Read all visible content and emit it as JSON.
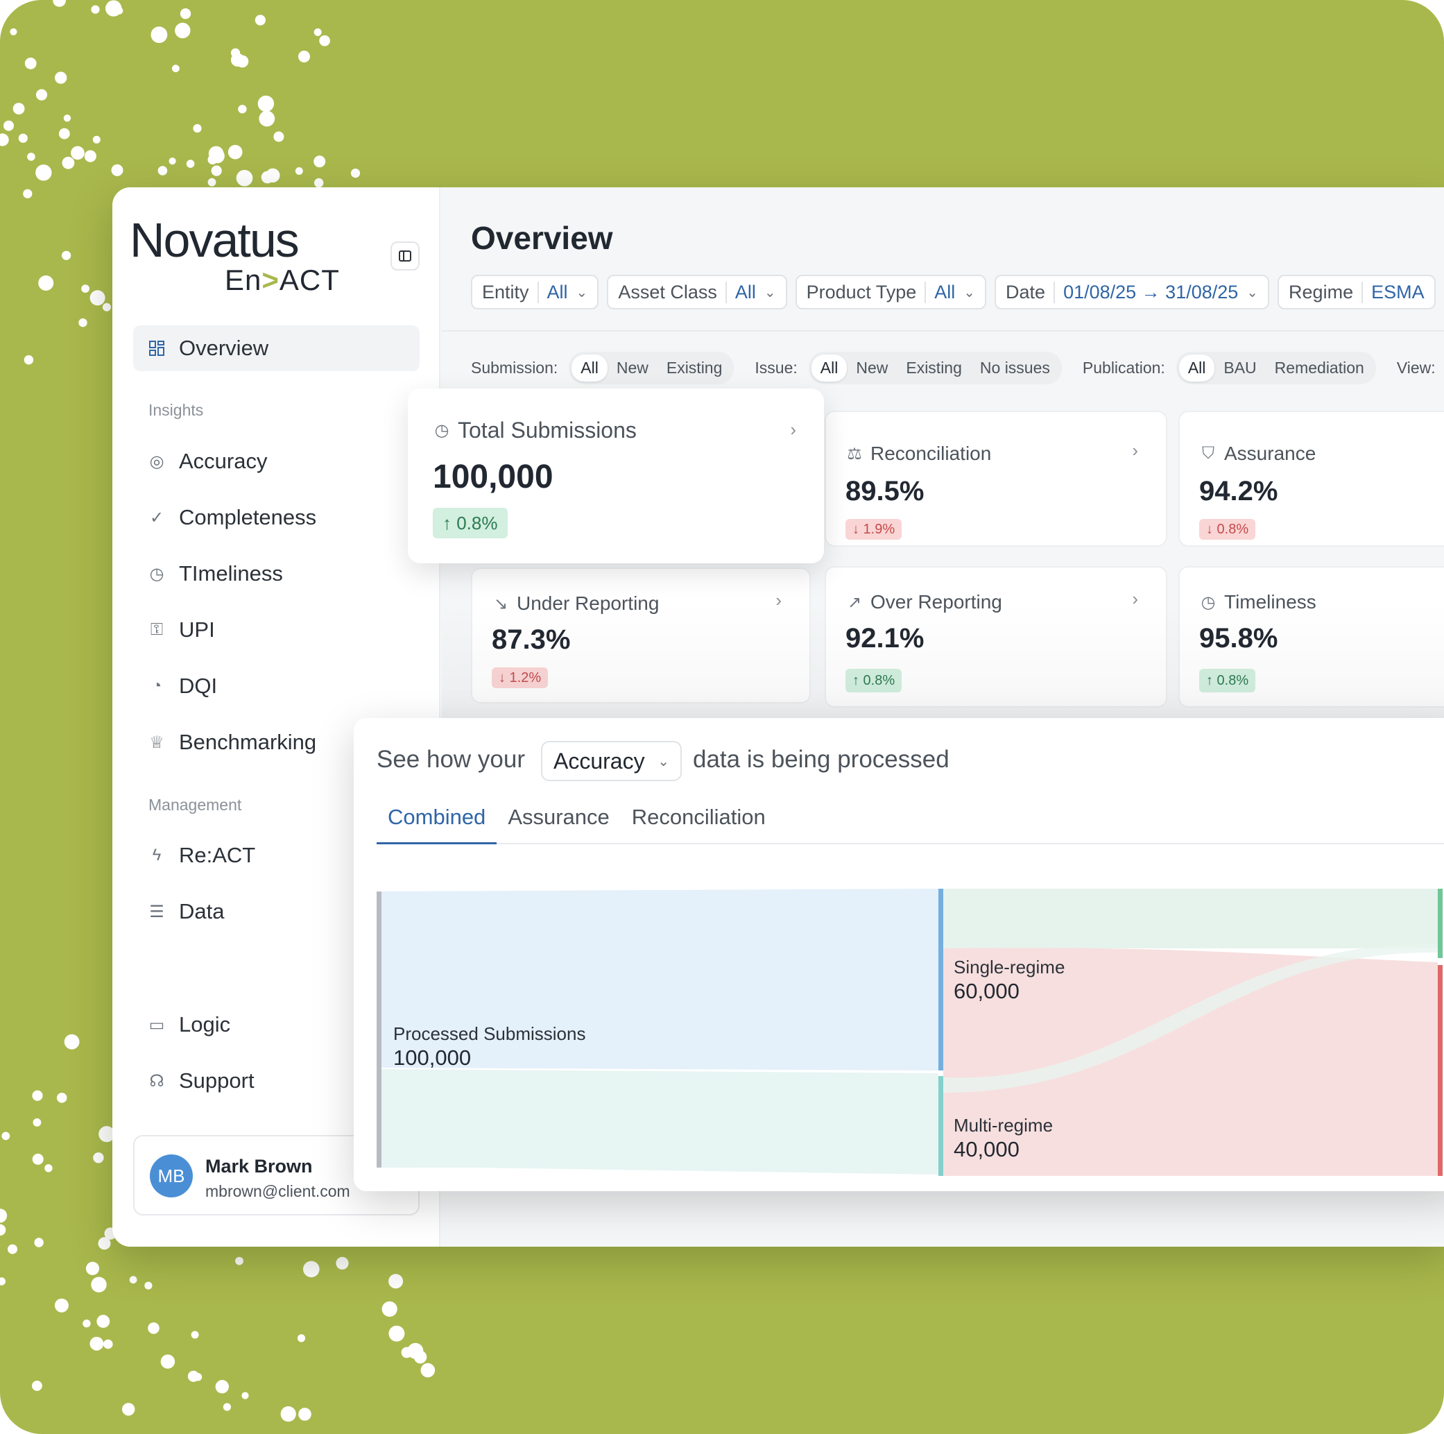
{
  "brand": {
    "title": "Novatus",
    "sub_left": "En",
    "sub_chev": ">",
    "sub_right": "ACT"
  },
  "sidebar": {
    "overview": "Overview",
    "insights_header": "Insights",
    "insights": [
      {
        "label": "Accuracy",
        "icon": "target-icon"
      },
      {
        "label": "Completeness",
        "icon": "check-circle-icon"
      },
      {
        "label": "TImeliness",
        "icon": "clock-icon"
      },
      {
        "label": "UPI",
        "icon": "key-icon"
      },
      {
        "label": "DQI",
        "icon": "gauge-icon"
      },
      {
        "label": "Benchmarking",
        "icon": "trophy-icon"
      }
    ],
    "management_header": "Management",
    "management": [
      {
        "label": "Re:ACT",
        "icon": "bolt-icon"
      },
      {
        "label": "Data",
        "icon": "database-icon"
      }
    ],
    "footer": [
      {
        "label": "Logic",
        "icon": "book-icon"
      },
      {
        "label": "Support",
        "icon": "headset-icon"
      }
    ],
    "user": {
      "initials": "MB",
      "name": "Mark Brown",
      "email": "mbrown@client.com"
    }
  },
  "header": {
    "title": "Overview",
    "filters": [
      {
        "label": "Entity",
        "value": "All"
      },
      {
        "label": "Asset Class",
        "value": "All"
      },
      {
        "label": "Product Type",
        "value": "All"
      },
      {
        "label": "Date",
        "value": "01/08/25 → 31/08/25"
      },
      {
        "label": "Regime",
        "value": "ESMA"
      }
    ]
  },
  "segments": {
    "submission": {
      "label": "Submission:",
      "options": [
        "All",
        "New",
        "Existing"
      ]
    },
    "issue": {
      "label": "Issue:",
      "options": [
        "All",
        "New",
        "Existing",
        "No issues"
      ]
    },
    "publication": {
      "label": "Publication:",
      "options": [
        "All",
        "BAU",
        "Remediation"
      ]
    },
    "view": {
      "label": "View:"
    }
  },
  "cards": {
    "total": {
      "title": "Total Submissions",
      "value": "100,000",
      "delta": "↑ 0.8%"
    },
    "reconciliation": {
      "title": "Reconciliation",
      "value": "89.5%",
      "delta": "↓ 1.9%"
    },
    "assurance": {
      "title": "Assurance",
      "value": "94.2%",
      "delta": "↓ 0.8%"
    },
    "under": {
      "title": "Under Reporting",
      "value": "87.3%",
      "delta": "↓ 1.2%"
    },
    "over": {
      "title": "Over Reporting",
      "value": "92.1%",
      "delta": "↑ 0.8%"
    },
    "timeliness": {
      "title": "Timeliness",
      "value": "95.8%",
      "delta": "↑ 0.8%"
    }
  },
  "process": {
    "prefix": "See how your",
    "selected": "Accuracy",
    "suffix": "data is being processed",
    "tabs": [
      "Combined",
      "Assurance",
      "Reconciliation"
    ],
    "nodes": {
      "source": {
        "label": "Processed Submissions",
        "value": "100,000"
      },
      "single": {
        "label": "Single-regime",
        "value": "60,000"
      },
      "multi": {
        "label": "Multi-regime",
        "value": "40,000"
      }
    }
  },
  "colors": {
    "brand_green": "#a9b84c",
    "accent_blue": "#2f65a7",
    "up_bg": "#d2efdf",
    "down_bg": "#fad5d5"
  }
}
